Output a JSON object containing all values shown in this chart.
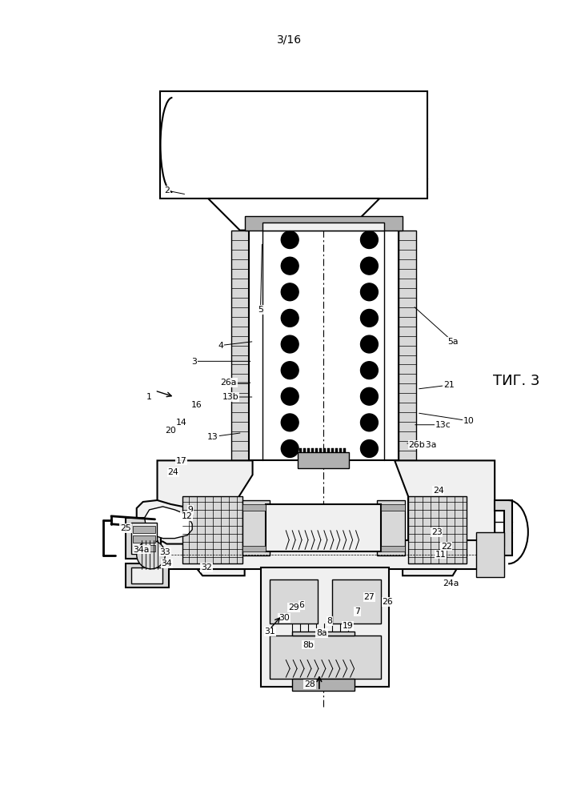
{
  "page_label": "3/16",
  "fig_label": "ΤИГ. 3",
  "bg_color": "#ffffff",
  "line_color": "#000000",
  "gray_light": "#f0f0f0",
  "gray_mid": "#d8d8d8",
  "gray_dark": "#b0b0b0",
  "figsize": [
    7.07,
    10.0
  ],
  "dpi": 100
}
